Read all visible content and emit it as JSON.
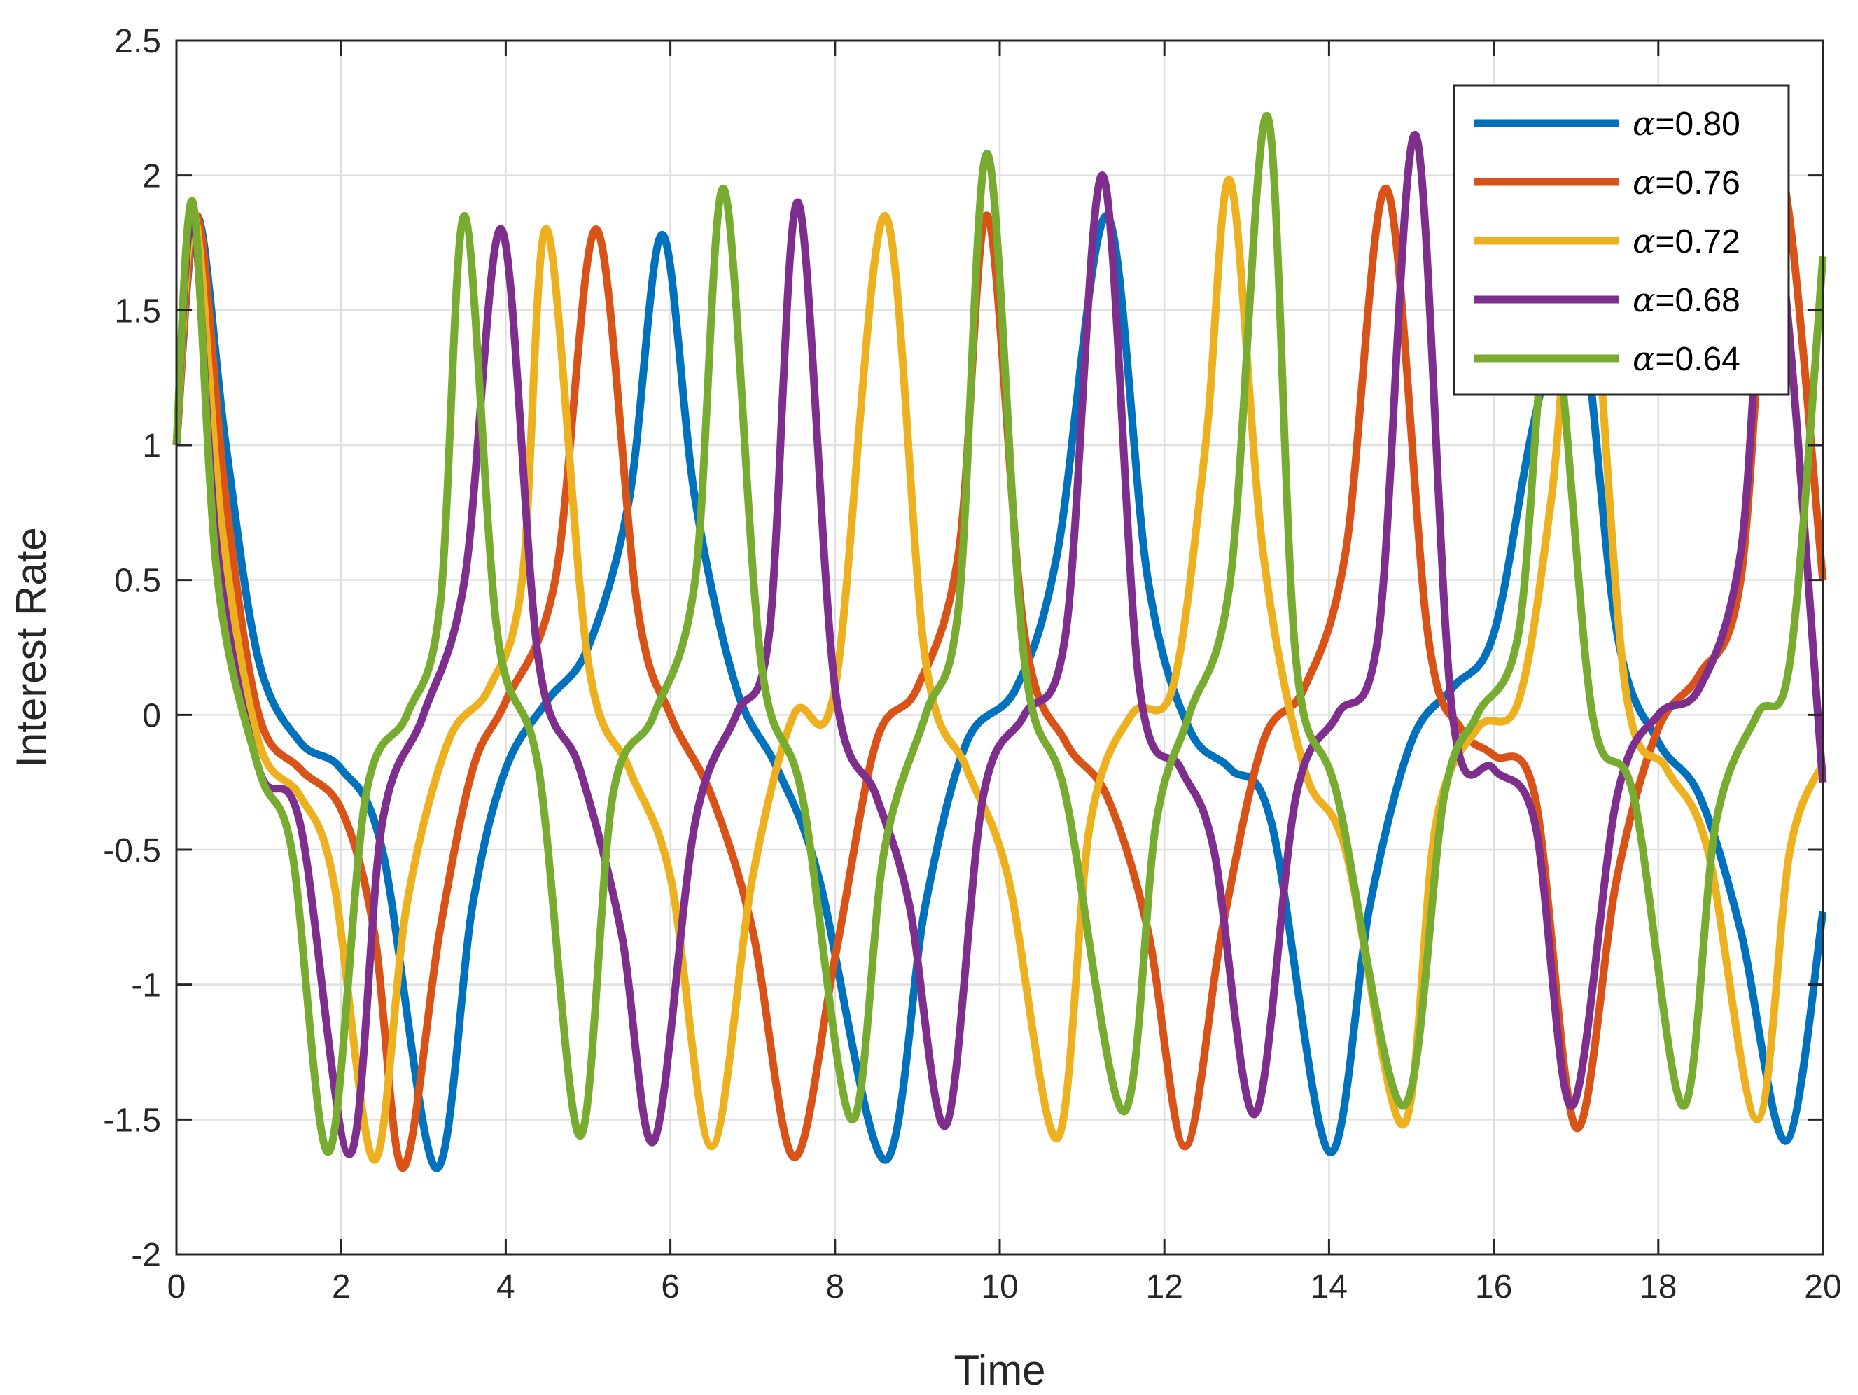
{
  "chart_data": {
    "type": "line",
    "title": "",
    "xlabel": "Time",
    "ylabel": "Interest Rate",
    "xlim": [
      0,
      20
    ],
    "ylim": [
      -2,
      2.5
    ],
    "xticks": [
      0,
      2,
      4,
      6,
      8,
      10,
      12,
      14,
      16,
      18,
      20
    ],
    "yticks": [
      -2,
      -1.5,
      -1,
      -0.5,
      0,
      0.5,
      1,
      1.5,
      2,
      2.5
    ],
    "xtick_labels": [
      "0",
      "2",
      "4",
      "6",
      "8",
      "10",
      "12",
      "14",
      "16",
      "18",
      "20"
    ],
    "ytick_labels": [
      "-2",
      "-1.5",
      "-1",
      "-0.5",
      "0",
      "0.5",
      "1",
      "1.5",
      "2",
      "2.5"
    ],
    "grid": true,
    "legend_position": "top-right",
    "series": [
      {
        "name": "α=0.80",
        "symbol": "α",
        "value_text": "=0.80",
        "color": "#0072BD",
        "x": [
          0,
          0.25,
          0.6,
          1.0,
          1.5,
          2.0,
          2.5,
          3.15,
          3.6,
          4.0,
          4.5,
          5.0,
          5.5,
          5.9,
          6.3,
          6.8,
          7.3,
          7.8,
          8.6,
          9.1,
          9.6,
          10.2,
          10.7,
          11.3,
          11.8,
          12.3,
          12.8,
          13.3,
          14.0,
          14.5,
          15.0,
          15.5,
          16.0,
          16.5,
          17.0,
          17.5,
          18.0,
          18.5,
          19.0,
          19.55,
          20.0
        ],
        "y": [
          1.0,
          1.85,
          1.0,
          0.2,
          -0.1,
          -0.2,
          -0.5,
          -1.68,
          -0.7,
          -0.2,
          0.05,
          0.25,
          0.8,
          1.78,
          0.8,
          0.1,
          -0.2,
          -0.6,
          -1.65,
          -0.7,
          -0.1,
          0.1,
          0.6,
          1.85,
          0.5,
          -0.05,
          -0.2,
          -0.4,
          -1.62,
          -0.7,
          -0.1,
          0.1,
          0.3,
          1.1,
          1.6,
          0.3,
          -0.1,
          -0.3,
          -0.8,
          -1.58,
          -0.73
        ]
      },
      {
        "name": "α=0.76",
        "symbol": "α",
        "value_text": "=0.76",
        "color": "#D95319",
        "x": [
          0,
          0.25,
          0.6,
          1.0,
          1.5,
          2.0,
          2.4,
          2.75,
          3.2,
          3.6,
          4.0,
          4.6,
          5.1,
          5.6,
          6.0,
          6.5,
          7.0,
          7.5,
          8.0,
          8.5,
          9.0,
          9.5,
          9.85,
          10.3,
          10.8,
          11.3,
          11.8,
          12.25,
          12.7,
          13.2,
          13.7,
          14.2,
          14.7,
          15.2,
          15.6,
          16.0,
          16.5,
          17.0,
          17.5,
          18.0,
          18.5,
          19.0,
          19.45,
          20.0
        ],
        "y": [
          1.0,
          1.85,
          0.8,
          0.0,
          -0.2,
          -0.35,
          -0.8,
          -1.68,
          -0.8,
          -0.2,
          0.05,
          0.5,
          1.8,
          0.4,
          0.0,
          -0.3,
          -0.8,
          -1.64,
          -0.9,
          -0.1,
          0.1,
          0.6,
          1.85,
          0.3,
          -0.1,
          -0.3,
          -0.8,
          -1.6,
          -0.8,
          -0.1,
          0.1,
          0.6,
          1.95,
          0.3,
          -0.05,
          -0.15,
          -0.3,
          -1.53,
          -0.6,
          -0.05,
          0.15,
          0.5,
          2.05,
          0.5
        ]
      },
      {
        "name": "α=0.72",
        "symbol": "α",
        "value_text": "=0.72",
        "color": "#EDB120",
        "x": [
          0,
          0.22,
          0.55,
          1.0,
          1.5,
          1.9,
          2.4,
          2.8,
          3.3,
          3.8,
          4.2,
          4.5,
          5.0,
          5.5,
          6.0,
          6.5,
          7.0,
          7.5,
          8.0,
          8.6,
          9.1,
          9.6,
          10.1,
          10.7,
          11.1,
          11.6,
          12.1,
          12.5,
          12.8,
          13.2,
          13.7,
          14.2,
          14.9,
          15.3,
          15.8,
          16.3,
          16.7,
          17.1,
          17.6,
          18.1,
          18.6,
          19.2,
          19.6,
          20.0
        ],
        "y": [
          1.0,
          1.85,
          0.7,
          -0.1,
          -0.3,
          -0.6,
          -1.65,
          -0.7,
          -0.1,
          0.1,
          0.5,
          1.8,
          0.2,
          -0.2,
          -0.6,
          -1.6,
          -0.6,
          0.0,
          0.1,
          1.85,
          0.2,
          -0.2,
          -0.6,
          -1.57,
          -0.4,
          0.0,
          0.1,
          1.0,
          1.98,
          0.6,
          -0.2,
          -0.5,
          -1.52,
          -0.4,
          -0.05,
          0.05,
          0.8,
          1.9,
          0.1,
          -0.2,
          -0.5,
          -1.5,
          -0.5,
          -0.18
        ]
      },
      {
        "name": "α=0.68",
        "symbol": "α",
        "value_text": "=0.68",
        "color": "#7E2F8E",
        "x": [
          0,
          0.2,
          0.5,
          1.0,
          1.5,
          2.1,
          2.5,
          3.0,
          3.5,
          3.95,
          4.4,
          4.9,
          5.4,
          5.8,
          6.3,
          6.8,
          7.2,
          7.55,
          8.0,
          8.5,
          8.9,
          9.35,
          9.8,
          10.3,
          10.8,
          11.25,
          11.7,
          12.2,
          12.6,
          13.1,
          13.6,
          14.1,
          14.6,
          15.05,
          15.5,
          16.0,
          16.5,
          16.95,
          17.5,
          18.0,
          18.5,
          19.0,
          19.4,
          20.0
        ],
        "y": [
          1.0,
          1.85,
          0.6,
          -0.2,
          -0.4,
          -1.63,
          -0.4,
          0.0,
          0.5,
          1.8,
          0.2,
          -0.2,
          -0.8,
          -1.58,
          -0.4,
          0.0,
          0.3,
          1.9,
          0.1,
          -0.3,
          -0.7,
          -1.52,
          -0.3,
          0.0,
          0.3,
          2.0,
          0.1,
          -0.2,
          -0.5,
          -1.48,
          -0.3,
          0.0,
          0.3,
          2.15,
          0.0,
          -0.2,
          -0.4,
          -1.45,
          -0.3,
          0.0,
          0.1,
          0.6,
          1.9,
          -0.25
        ]
      },
      {
        "name": "α=0.64",
        "symbol": "α",
        "value_text": "=0.64",
        "color": "#77AC30",
        "x": [
          0,
          0.2,
          0.5,
          1.0,
          1.4,
          1.85,
          2.3,
          2.8,
          3.2,
          3.5,
          3.9,
          4.4,
          4.9,
          5.3,
          5.8,
          6.3,
          6.65,
          7.1,
          7.6,
          8.2,
          8.6,
          9.1,
          9.5,
          9.85,
          10.3,
          10.8,
          11.5,
          11.9,
          12.3,
          12.8,
          13.25,
          13.6,
          14.1,
          14.9,
          15.4,
          15.8,
          16.3,
          16.7,
          17.2,
          17.7,
          18.3,
          18.7,
          19.2,
          19.6,
          20.0
        ],
        "y": [
          1.0,
          1.9,
          0.5,
          -0.2,
          -0.5,
          -1.62,
          -0.3,
          0.0,
          0.4,
          1.85,
          0.3,
          -0.2,
          -1.56,
          -0.3,
          0.0,
          0.5,
          1.95,
          0.2,
          -0.3,
          -1.5,
          -0.5,
          0.0,
          0.4,
          2.08,
          0.2,
          -0.3,
          -1.47,
          -0.4,
          0.0,
          0.5,
          2.22,
          0.2,
          -0.3,
          -1.45,
          -0.3,
          0.0,
          0.3,
          1.5,
          0.0,
          -0.3,
          -1.45,
          -0.4,
          0.0,
          0.2,
          1.7
        ]
      }
    ]
  }
}
